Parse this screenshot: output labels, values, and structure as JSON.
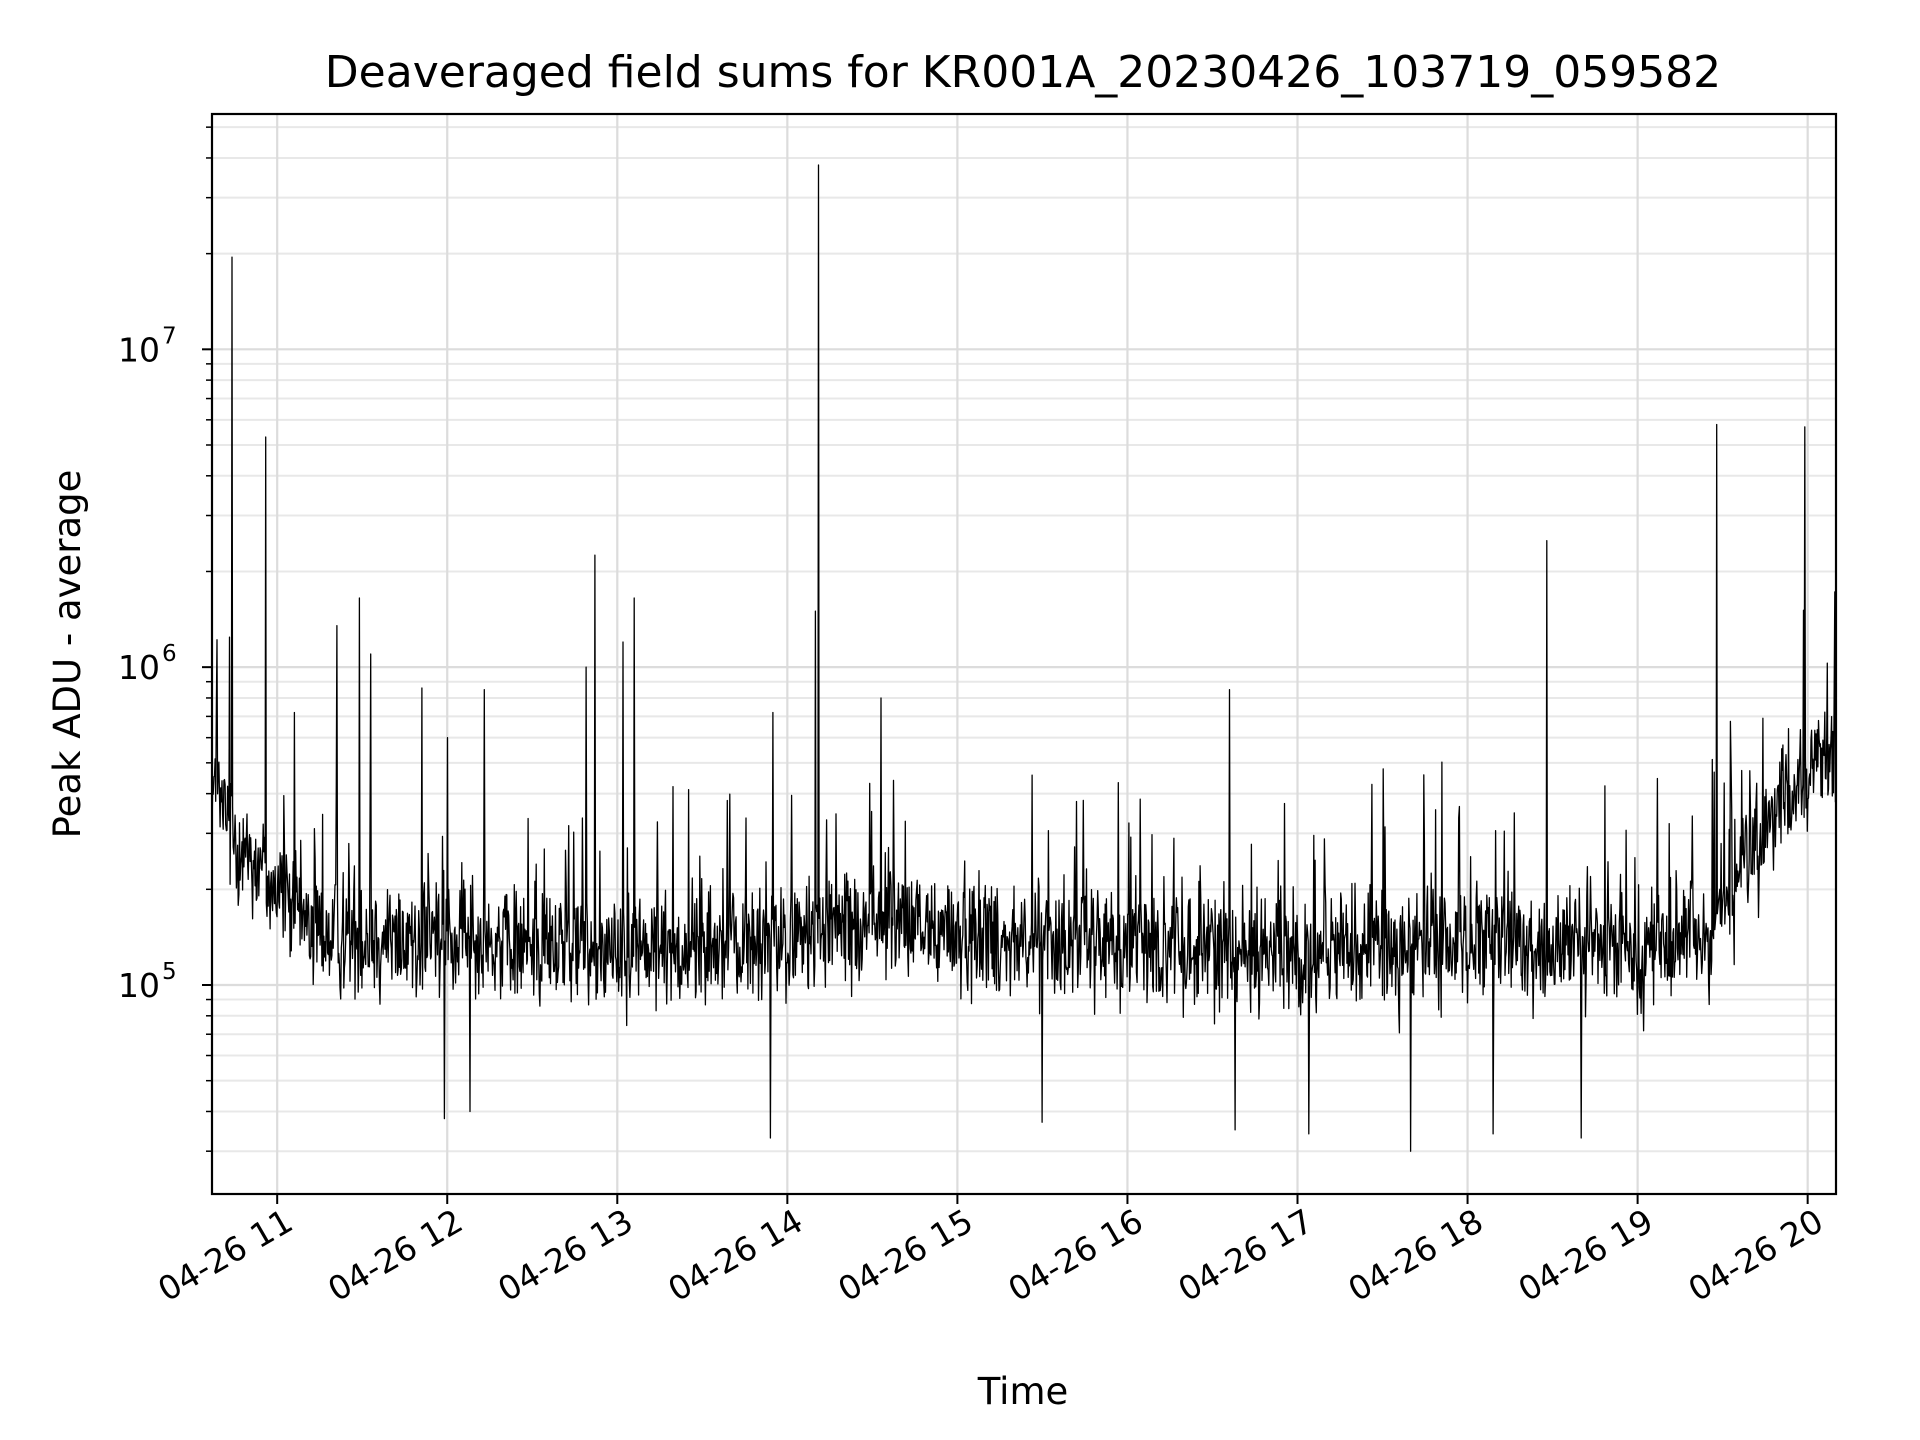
{
  "chart_data": {
    "type": "line",
    "title": "Deaveraged field sums for KR001A_20230426_103719_059582",
    "xlabel": "Time",
    "ylabel": "Peak ADU - average",
    "y_scale": "log",
    "ylim": [
      22000,
      55000000
    ],
    "xlim": [
      "2023-04-26 10:37",
      "2023-04-26 20:10"
    ],
    "grid": true,
    "grid_minor": true,
    "line_color": "#000000",
    "x_ticks": [
      {
        "value": "2023-04-26 11:00",
        "label": "04-26 11"
      },
      {
        "value": "2023-04-26 12:00",
        "label": "04-26 12"
      },
      {
        "value": "2023-04-26 13:00",
        "label": "04-26 13"
      },
      {
        "value": "2023-04-26 14:00",
        "label": "04-26 14"
      },
      {
        "value": "2023-04-26 15:00",
        "label": "04-26 15"
      },
      {
        "value": "2023-04-26 16:00",
        "label": "04-26 16"
      },
      {
        "value": "2023-04-26 17:00",
        "label": "04-26 17"
      },
      {
        "value": "2023-04-26 18:00",
        "label": "04-26 18"
      },
      {
        "value": "2023-04-26 19:00",
        "label": "04-26 19"
      },
      {
        "value": "2023-04-26 20:00",
        "label": "04-26 20"
      }
    ],
    "y_ticks": [
      {
        "value": 100000,
        "base": "10",
        "exp": "5"
      },
      {
        "value": 1000000,
        "base": "10",
        "exp": "6"
      },
      {
        "value": 10000000,
        "base": "10",
        "exp": "7"
      }
    ],
    "series": [
      {
        "baseline": [
          {
            "x": "2023-04-26 10:37",
            "y": 420000
          },
          {
            "x": "2023-04-26 10:45",
            "y": 300000
          },
          {
            "x": "2023-04-26 11:00",
            "y": 200000
          },
          {
            "x": "2023-04-26 11:15",
            "y": 145000
          },
          {
            "x": "2023-04-26 12:00",
            "y": 138000
          },
          {
            "x": "2023-04-26 13:00",
            "y": 130000
          },
          {
            "x": "2023-04-26 14:00",
            "y": 135000
          },
          {
            "x": "2023-04-26 14:30",
            "y": 160000
          },
          {
            "x": "2023-04-26 15:00",
            "y": 145000
          },
          {
            "x": "2023-04-26 16:00",
            "y": 135000
          },
          {
            "x": "2023-04-26 17:00",
            "y": 125000
          },
          {
            "x": "2023-04-26 18:00",
            "y": 135000
          },
          {
            "x": "2023-04-26 19:00",
            "y": 130000
          },
          {
            "x": "2023-04-26 19:25",
            "y": 145000
          },
          {
            "x": "2023-04-26 19:35",
            "y": 220000
          },
          {
            "x": "2023-04-26 19:50",
            "y": 350000
          },
          {
            "x": "2023-04-26 20:05",
            "y": 520000
          },
          {
            "x": "2023-04-26 20:10",
            "y": 550000
          }
        ],
        "spikes": [
          {
            "x": "2023-04-26 10:44",
            "y": 19500000
          },
          {
            "x": "2023-04-26 10:56",
            "y": 5300000
          },
          {
            "x": "2023-04-26 11:06",
            "y": 720000
          },
          {
            "x": "2023-04-26 11:21",
            "y": 1350000
          },
          {
            "x": "2023-04-26 11:29",
            "y": 1650000
          },
          {
            "x": "2023-04-26 11:33",
            "y": 1100000
          },
          {
            "x": "2023-04-26 11:51",
            "y": 860000
          },
          {
            "x": "2023-04-26 12:00",
            "y": 600000
          },
          {
            "x": "2023-04-26 12:13",
            "y": 850000
          },
          {
            "x": "2023-04-26 12:52",
            "y": 2250000
          },
          {
            "x": "2023-04-26 12:49",
            "y": 1000000
          },
          {
            "x": "2023-04-26 13:02",
            "y": 1200000
          },
          {
            "x": "2023-04-26 13:06",
            "y": 1650000
          },
          {
            "x": "2023-04-26 13:55",
            "y": 720000
          },
          {
            "x": "2023-04-26 14:10",
            "y": 1500000
          },
          {
            "x": "2023-04-26 14:11",
            "y": 38000000
          },
          {
            "x": "2023-04-26 14:33",
            "y": 800000
          },
          {
            "x": "2023-04-26 16:36",
            "y": 850000
          },
          {
            "x": "2023-04-26 18:28",
            "y": 2500000
          },
          {
            "x": "2023-04-26 19:28",
            "y": 5800000
          },
          {
            "x": "2023-04-26 19:59",
            "y": 5700000
          },
          {
            "x": "2023-04-26 20:07",
            "y": 1030000
          }
        ],
        "dips": [
          {
            "x": "2023-04-26 11:59",
            "y": 38000
          },
          {
            "x": "2023-04-26 12:08",
            "y": 40000
          },
          {
            "x": "2023-04-26 13:54",
            "y": 33000
          },
          {
            "x": "2023-04-26 15:30",
            "y": 37000
          },
          {
            "x": "2023-04-26 16:38",
            "y": 35000
          },
          {
            "x": "2023-04-26 17:04",
            "y": 34000
          },
          {
            "x": "2023-04-26 17:40",
            "y": 30000
          },
          {
            "x": "2023-04-26 18:09",
            "y": 34000
          },
          {
            "x": "2023-04-26 18:40",
            "y": 33000
          }
        ]
      }
    ]
  }
}
